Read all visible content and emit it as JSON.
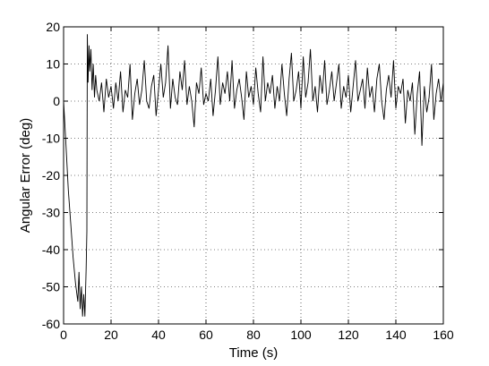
{
  "chart_data": {
    "type": "line",
    "title": "",
    "xlabel": "Time (s)",
    "ylabel": "Angular Error (deg)",
    "xlim": [
      0,
      160
    ],
    "ylim": [
      -60,
      20
    ],
    "xticks": [
      0,
      20,
      40,
      60,
      80,
      100,
      120,
      140,
      160
    ],
    "yticks": [
      -60,
      -50,
      -40,
      -30,
      -20,
      -10,
      0,
      10,
      20
    ],
    "grid": true,
    "line_color": "#000000",
    "series": [
      {
        "x": [
          0,
          1,
          2,
          3,
          4,
          5,
          6,
          6.5,
          7,
          7.5,
          8,
          8.5,
          9,
          9.5,
          9.8,
          10,
          10.3,
          10.7,
          11,
          11.5,
          12,
          12.5,
          13,
          13.5,
          14,
          15,
          16,
          17,
          18,
          19,
          20,
          21,
          22,
          23,
          24,
          25,
          26,
          27,
          28,
          29,
          30,
          31,
          32,
          33,
          34,
          35,
          36,
          37,
          38,
          39,
          40,
          41,
          42,
          43,
          44,
          45,
          46,
          47,
          48,
          49,
          50,
          51,
          52,
          53,
          54,
          55,
          56,
          57,
          58,
          59,
          60,
          61,
          62,
          63,
          64,
          65,
          66,
          67,
          68,
          69,
          70,
          71,
          72,
          73,
          74,
          75,
          76,
          77,
          78,
          79,
          80,
          81,
          82,
          83,
          84,
          85,
          86,
          87,
          88,
          89,
          90,
          91,
          92,
          93,
          94,
          95,
          96,
          97,
          98,
          99,
          100,
          101,
          102,
          103,
          104,
          105,
          106,
          107,
          108,
          109,
          110,
          111,
          112,
          113,
          114,
          115,
          116,
          117,
          118,
          119,
          120,
          121,
          122,
          123,
          124,
          125,
          126,
          127,
          128,
          129,
          130,
          131,
          132,
          133,
          134,
          135,
          136,
          137,
          138,
          139,
          140,
          141,
          142,
          143,
          144,
          145,
          146,
          147,
          148,
          149,
          150,
          151,
          152,
          153,
          154,
          155,
          156,
          157,
          158,
          159,
          160
        ],
        "y": [
          0,
          -12,
          -24,
          -33,
          -42,
          -49,
          -54,
          -46,
          -56,
          -50,
          -58,
          -52,
          -58,
          -45,
          -35,
          18,
          5,
          15,
          8,
          14,
          3,
          10,
          1,
          7,
          3,
          0,
          5,
          -3,
          6,
          1,
          4,
          -2,
          5,
          0,
          8,
          -3,
          3,
          1,
          10,
          -5,
          2,
          6,
          -1,
          3,
          11,
          0,
          -2,
          4,
          7,
          -4,
          3,
          10,
          1,
          5,
          15,
          -2,
          6,
          1,
          -1,
          8,
          3,
          11,
          -1,
          4,
          0,
          -7,
          5,
          2,
          9,
          -1,
          2,
          0,
          6,
          -4,
          3,
          12,
          -1,
          5,
          2,
          8,
          0,
          11,
          -2,
          3,
          6,
          1,
          -5,
          8,
          1,
          4,
          -1,
          9,
          2,
          -3,
          12,
          0,
          5,
          2,
          7,
          -2,
          4,
          0,
          10,
          2,
          -4,
          6,
          13,
          0,
          3,
          8,
          -2,
          12,
          1,
          5,
          14,
          0,
          4,
          -3,
          7,
          2,
          11,
          -1,
          3,
          8,
          0,
          5,
          10,
          -2,
          4,
          1,
          7,
          -3,
          4,
          11,
          0,
          3,
          6,
          -2,
          9,
          1,
          4,
          -3,
          6,
          10,
          0,
          -5,
          3,
          7,
          1,
          11,
          -2,
          4,
          2,
          6,
          -6,
          3,
          0,
          5,
          -9,
          2,
          8,
          -12,
          4,
          -3,
          1,
          10,
          -5,
          2,
          6,
          0,
          5
        ]
      }
    ]
  }
}
